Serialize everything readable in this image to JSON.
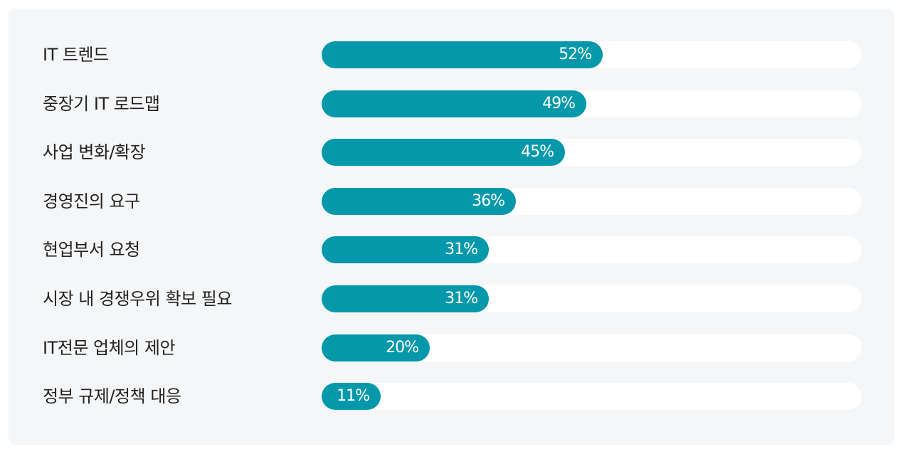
{
  "chart_data": {
    "type": "bar",
    "orientation": "horizontal",
    "categories": [
      "IT 트렌드",
      "중장기 IT 로드맵",
      "사업 변화/확장",
      "경영진의 요구",
      "현업부서 요청",
      "시장 내 경쟁우위 확보 필요",
      "IT전문 업체의 제안",
      "정부 규제/정책 대응"
    ],
    "values": [
      52,
      49,
      45,
      36,
      31,
      31,
      20,
      11
    ],
    "value_labels": [
      "52%",
      "49%",
      "45%",
      "36%",
      "31%",
      "31%",
      "20%",
      "11%"
    ],
    "xlim": [
      0,
      100
    ],
    "grid": false,
    "legend": "none",
    "bar_color": "#0598aa",
    "track_color": "#ffffff",
    "background_color": "#f5f6f8"
  }
}
